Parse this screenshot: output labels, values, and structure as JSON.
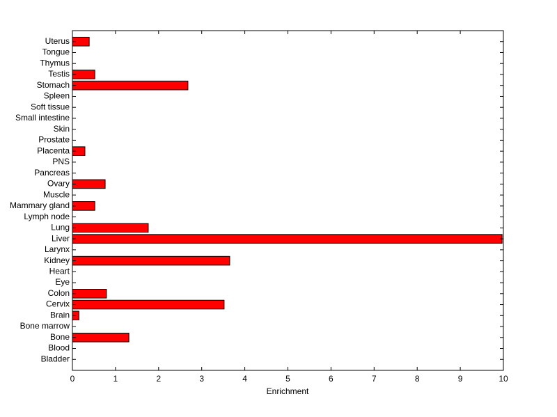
{
  "chart_data": {
    "type": "barh",
    "xlabel": "Enrichment",
    "categories": [
      "Bladder",
      "Blood",
      "Bone",
      "Bone marrow",
      "Brain",
      "Cervix",
      "Colon",
      "Eye",
      "Heart",
      "Kidney",
      "Larynx",
      "Liver",
      "Lung",
      "Lymph node",
      "Mammary gland",
      "Muscle",
      "Ovary",
      "Pancreas",
      "PNS",
      "Placenta",
      "Prostate",
      "Skin",
      "Small intestine",
      "Soft tissue",
      "Spleen",
      "Stomach",
      "Testis",
      "Thymus",
      "Tongue",
      "Uterus"
    ],
    "values": [
      0,
      0,
      1.31,
      0,
      0.15,
      3.52,
      0.79,
      0,
      0,
      3.65,
      0,
      9.97,
      1.76,
      0,
      0.52,
      0,
      0.76,
      0,
      0,
      0.29,
      0,
      0,
      0,
      0,
      0,
      2.68,
      0.52,
      0,
      0,
      0.39
    ],
    "color": "#ff0000",
    "xlim": [
      0,
      10
    ],
    "xticks": [
      0,
      1,
      2,
      3,
      4,
      5,
      6,
      7,
      8,
      9,
      10
    ]
  }
}
